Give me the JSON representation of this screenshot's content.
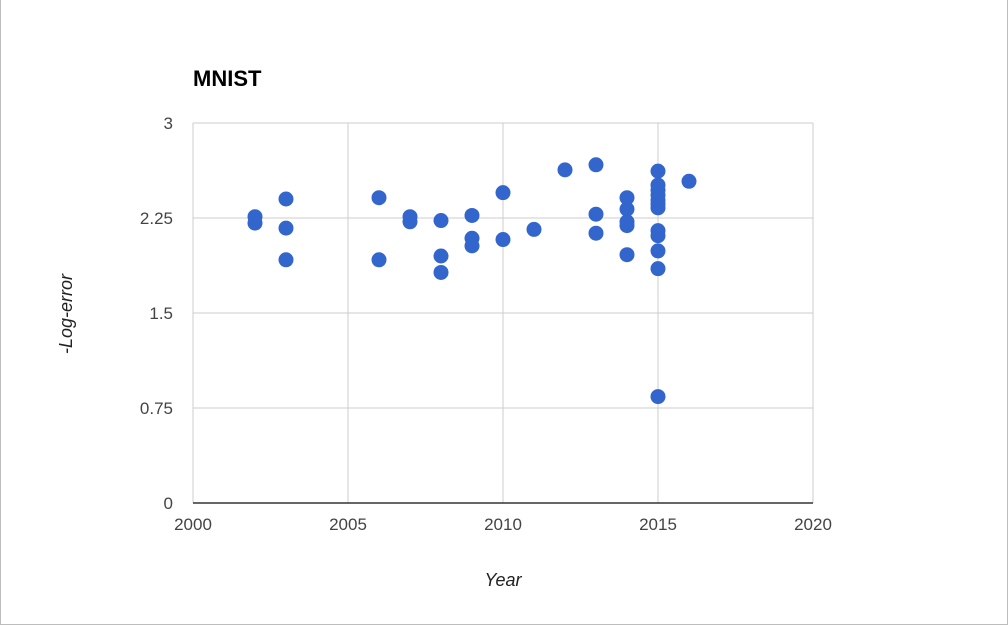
{
  "chart_data": {
    "type": "scatter",
    "title": "MNIST",
    "xlabel": "Year",
    "ylabel": "-Log-error",
    "xlim": [
      2000,
      2020
    ],
    "ylim": [
      0,
      3
    ],
    "x_ticks": [
      "2000",
      "2005",
      "2010",
      "2015",
      "2020"
    ],
    "y_ticks": [
      "0",
      "0.75",
      "1.5",
      "2.25",
      "3"
    ],
    "grid": true,
    "legend": "none",
    "point_color": "#3366cc",
    "points": [
      [
        2002,
        2.26
      ],
      [
        2002,
        2.21
      ],
      [
        2003,
        2.4
      ],
      [
        2003,
        2.17
      ],
      [
        2003,
        1.92
      ],
      [
        2006,
        2.41
      ],
      [
        2006,
        1.92
      ],
      [
        2007,
        2.26
      ],
      [
        2007,
        2.22
      ],
      [
        2008,
        2.23
      ],
      [
        2008,
        1.95
      ],
      [
        2008,
        1.82
      ],
      [
        2009,
        2.27
      ],
      [
        2009,
        2.09
      ],
      [
        2009,
        2.03
      ],
      [
        2010,
        2.45
      ],
      [
        2010,
        2.08
      ],
      [
        2011,
        2.16
      ],
      [
        2012,
        2.63
      ],
      [
        2013,
        2.67
      ],
      [
        2013,
        2.28
      ],
      [
        2013,
        2.13
      ],
      [
        2014,
        2.41
      ],
      [
        2014,
        2.32
      ],
      [
        2014,
        2.22
      ],
      [
        2014,
        2.19
      ],
      [
        2014,
        1.96
      ],
      [
        2015,
        2.62
      ],
      [
        2015,
        2.51
      ],
      [
        2015,
        2.47
      ],
      [
        2015,
        2.43
      ],
      [
        2015,
        2.39
      ],
      [
        2015,
        2.36
      ],
      [
        2015,
        2.33
      ],
      [
        2015,
        2.15
      ],
      [
        2015,
        2.11
      ],
      [
        2015,
        1.99
      ],
      [
        2015,
        1.85
      ],
      [
        2015,
        0.84
      ],
      [
        2016,
        2.54
      ]
    ]
  }
}
